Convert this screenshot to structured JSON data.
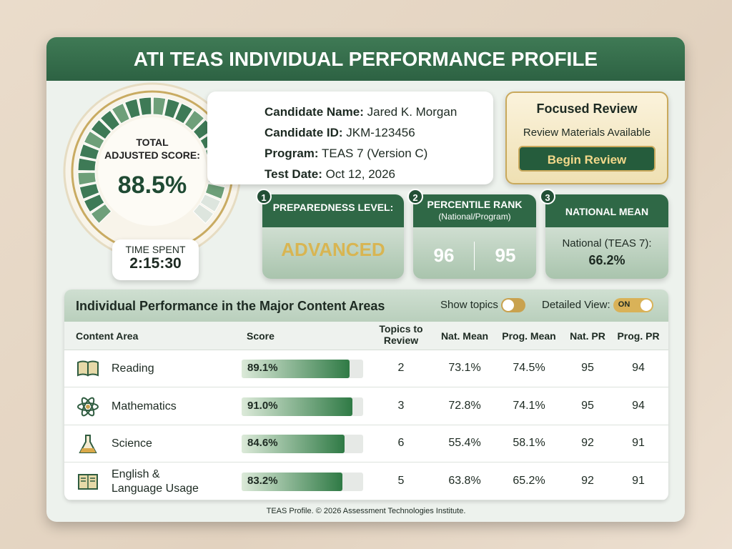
{
  "header": {
    "title": "ATI TEAS INDIVIDUAL PERFORMANCE PROFILE"
  },
  "score_gauge": {
    "label_line1": "TOTAL",
    "label_line2": "ADJUSTED SCORE:",
    "score": {
      "value": 88.5,
      "label": "88.5%"
    },
    "time_label": "TIME SPENT",
    "time": "2:15:30"
  },
  "candidate": [
    {
      "label": "Candidate Name:",
      "value": "Jared K. Morgan"
    },
    {
      "label": "Candidate ID:",
      "value": "JKM-123456"
    },
    {
      "label": "Program:",
      "value": "TEAS 7 (Version C)"
    },
    {
      "label": "Test Date:",
      "value": "Oct 12, 2026"
    }
  ],
  "review": {
    "title": "Focused Review",
    "subtitle": "Review Materials Available",
    "button": "Begin Review"
  },
  "stats": [
    {
      "number": "1",
      "title": "PREPAREDNESS LEVEL:",
      "value": "ADVANCED"
    },
    {
      "number": "2",
      "title": "PERCENTILE RANK",
      "subtitle": "(National/Program)",
      "values": [
        "96",
        "95"
      ]
    },
    {
      "number": "3",
      "title": "NATIONAL MEAN",
      "subtitle": "National (TEAS 7):",
      "value": "66.2%"
    }
  ],
  "performance": {
    "title": "Individual Performance in the Major Content Areas",
    "toggles": [
      {
        "label": "Show topics"
      },
      {
        "label": "Detailed View:",
        "state": "ON"
      }
    ],
    "columns": [
      "Content Area",
      "Score",
      "Topics to Review",
      "Nat. Mean",
      "Prog. Mean",
      "Nat. PR",
      "Prog. PR"
    ],
    "rows": [
      {
        "area": "Reading",
        "score": {
          "value": 89.1,
          "label": "89.1%"
        },
        "topics": "2",
        "nat_mean": "73.1%",
        "prog_mean": "74.5%",
        "nat_pr": "95",
        "prog_pr": "94"
      },
      {
        "area": "Mathematics",
        "score": {
          "value": 91.0,
          "label": "91.0%"
        },
        "topics": "3",
        "nat_mean": "72.8%",
        "prog_mean": "74.1%",
        "nat_pr": "95",
        "prog_pr": "94"
      },
      {
        "area": "Science",
        "score": {
          "value": 84.6,
          "label": "84.6%"
        },
        "topics": "6",
        "nat_mean": "55.4%",
        "prog_mean": "58.1%",
        "nat_pr": "92",
        "prog_pr": "91"
      },
      {
        "area": "English & Language Usage",
        "score": {
          "value": 83.2,
          "label": "83.2%"
        },
        "topics": "5",
        "nat_mean": "63.8%",
        "prog_mean": "65.2%",
        "nat_pr": "92",
        "prog_pr": "91"
      }
    ]
  },
  "footer": "TEAS Profile. © 2026 Assessment Technologies Institute."
}
